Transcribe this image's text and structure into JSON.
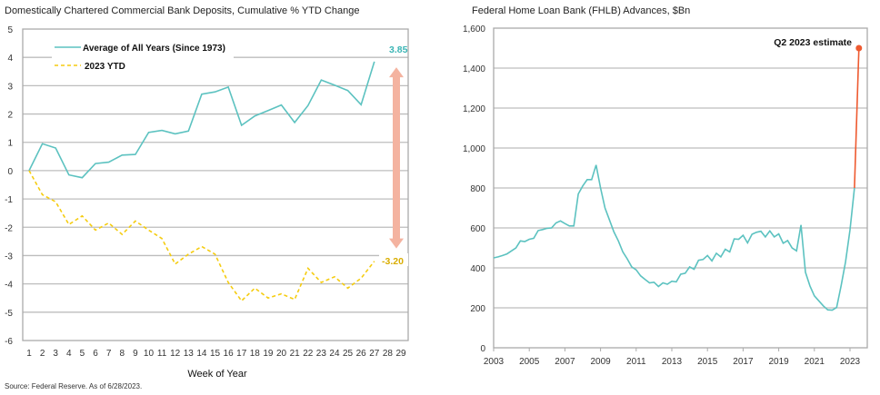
{
  "source_note": "Source: Federal Reserve. As of 6/28/2023.",
  "colors": {
    "average": "#5cc2c0",
    "ytd2023": "#f5cc10",
    "arrow": "#f4b3a0",
    "fhlb": "#5cc2c0",
    "estimate": "#ee5a30"
  },
  "chart_data": [
    {
      "type": "line",
      "title": "Domestically Chartered Commercial Bank Deposits, Cumulative % YTD Change",
      "xlabel": "Week of Year",
      "ylabel": "",
      "ylim": [
        -6,
        5
      ],
      "yticks": [
        "5",
        "4",
        "3",
        "2",
        "1",
        "0",
        "-1",
        "-2",
        "-3",
        "-4",
        "-5",
        "-6"
      ],
      "xticks": [
        "1",
        "2",
        "3",
        "4",
        "5",
        "6",
        "7",
        "8",
        "9",
        "10",
        "11",
        "12",
        "13",
        "14",
        "15",
        "16",
        "17",
        "18",
        "19",
        "20",
        "21",
        "22",
        "23",
        "24",
        "25",
        "26",
        "27",
        "28",
        "29"
      ],
      "grid": true,
      "legend_placement": "top-left",
      "x": [
        1,
        2,
        3,
        4,
        5,
        6,
        7,
        8,
        9,
        10,
        11,
        12,
        13,
        14,
        15,
        16,
        17,
        18,
        19,
        20,
        21,
        22,
        23,
        24,
        25,
        26,
        27
      ],
      "series": [
        {
          "name": "Average of All Years (Since 1973)",
          "style": "solid",
          "values": [
            0,
            0.95,
            0.8,
            -0.15,
            -0.25,
            0.25,
            0.3,
            0.55,
            0.57,
            1.35,
            1.42,
            1.3,
            1.4,
            2.7,
            2.78,
            2.95,
            1.6,
            1.93,
            2.12,
            2.32,
            1.7,
            2.3,
            3.2,
            3.02,
            2.83,
            2.33,
            3.85
          ]
        },
        {
          "name": "2023 YTD",
          "style": "dashed",
          "values": [
            0,
            -0.85,
            -1.1,
            -1.9,
            -1.6,
            -2.1,
            -1.85,
            -2.25,
            -1.78,
            -2.1,
            -2.4,
            -3.3,
            -2.95,
            -2.68,
            -2.95,
            -3.95,
            -4.6,
            -4.15,
            -4.5,
            -4.35,
            -4.55,
            -3.45,
            -3.95,
            -3.75,
            -4.15,
            -3.8,
            -3.2
          ]
        }
      ],
      "annotations": {
        "average_end_label": "3.85",
        "ytd_end_label": "-3.20",
        "gap_arrow": "double-headed"
      }
    },
    {
      "type": "line",
      "title": "Federal Home Loan Bank (FHLB) Advances, $Bn",
      "xlabel": "",
      "ylabel": "",
      "ylim": [
        0,
        1600
      ],
      "xlim": [
        "2003",
        "2024"
      ],
      "yticks": [
        "0",
        "200",
        "400",
        "600",
        "800",
        "1,000",
        "1,200",
        "1,400",
        "1,600"
      ],
      "xticks": [
        "2003",
        "2005",
        "2007",
        "2009",
        "2011",
        "2013",
        "2015",
        "2017",
        "2019",
        "2021",
        "2023"
      ],
      "grid": true,
      "series": [
        {
          "quarters": [
            "2003Q1",
            "2003Q2",
            "2003Q3",
            "2003Q4",
            "2004Q1",
            "2004Q2",
            "2004Q3",
            "2004Q4",
            "2005Q1",
            "2005Q2",
            "2005Q3",
            "2005Q4",
            "2006Q1",
            "2006Q2",
            "2006Q3",
            "2006Q4",
            "2007Q1",
            "2007Q2",
            "2007Q3",
            "2007Q4",
            "2008Q1",
            "2008Q2",
            "2008Q3",
            "2008Q4",
            "2009Q1",
            "2009Q2",
            "2009Q3",
            "2009Q4",
            "2010Q1",
            "2010Q2",
            "2010Q3",
            "2010Q4",
            "2011Q1",
            "2011Q2",
            "2011Q3",
            "2011Q4",
            "2012Q1",
            "2012Q2",
            "2012Q3",
            "2012Q4",
            "2013Q1",
            "2013Q2",
            "2013Q3",
            "2013Q4",
            "2014Q1",
            "2014Q2",
            "2014Q3",
            "2014Q4",
            "2015Q1",
            "2015Q2",
            "2015Q3",
            "2015Q4",
            "2016Q1",
            "2016Q2",
            "2016Q3",
            "2016Q4",
            "2017Q1",
            "2017Q2",
            "2017Q3",
            "2017Q4",
            "2018Q1",
            "2018Q2",
            "2018Q3",
            "2018Q4",
            "2019Q1",
            "2019Q2",
            "2019Q3",
            "2019Q4",
            "2020Q1",
            "2020Q2",
            "2020Q3",
            "2020Q4",
            "2021Q1",
            "2021Q2",
            "2021Q3",
            "2021Q4",
            "2022Q1",
            "2022Q2",
            "2022Q3",
            "2022Q4",
            "2023Q1",
            "2023Q2"
          ],
          "values": [
            450,
            455,
            462,
            470,
            485,
            500,
            535,
            532,
            543,
            548,
            587,
            592,
            598,
            600,
            625,
            635,
            622,
            610,
            610,
            770,
            810,
            842,
            842,
            915,
            800,
            700,
            640,
            580,
            535,
            480,
            445,
            405,
            390,
            360,
            342,
            325,
            328,
            307,
            325,
            318,
            333,
            330,
            368,
            373,
            405,
            393,
            438,
            442,
            462,
            435,
            473,
            455,
            493,
            480,
            545,
            543,
            563,
            525,
            568,
            578,
            583,
            555,
            585,
            555,
            570,
            523,
            537,
            500,
            485,
            615,
            378,
            310,
            260,
            235,
            210,
            190,
            188,
            202,
            310,
            430,
            590,
            800
          ]
        },
        {
          "name": "Q2 2023 estimate",
          "quarters": [
            "2023Q2",
            "2023Q3"
          ],
          "values": [
            800,
            1500
          ]
        }
      ]
    }
  ]
}
